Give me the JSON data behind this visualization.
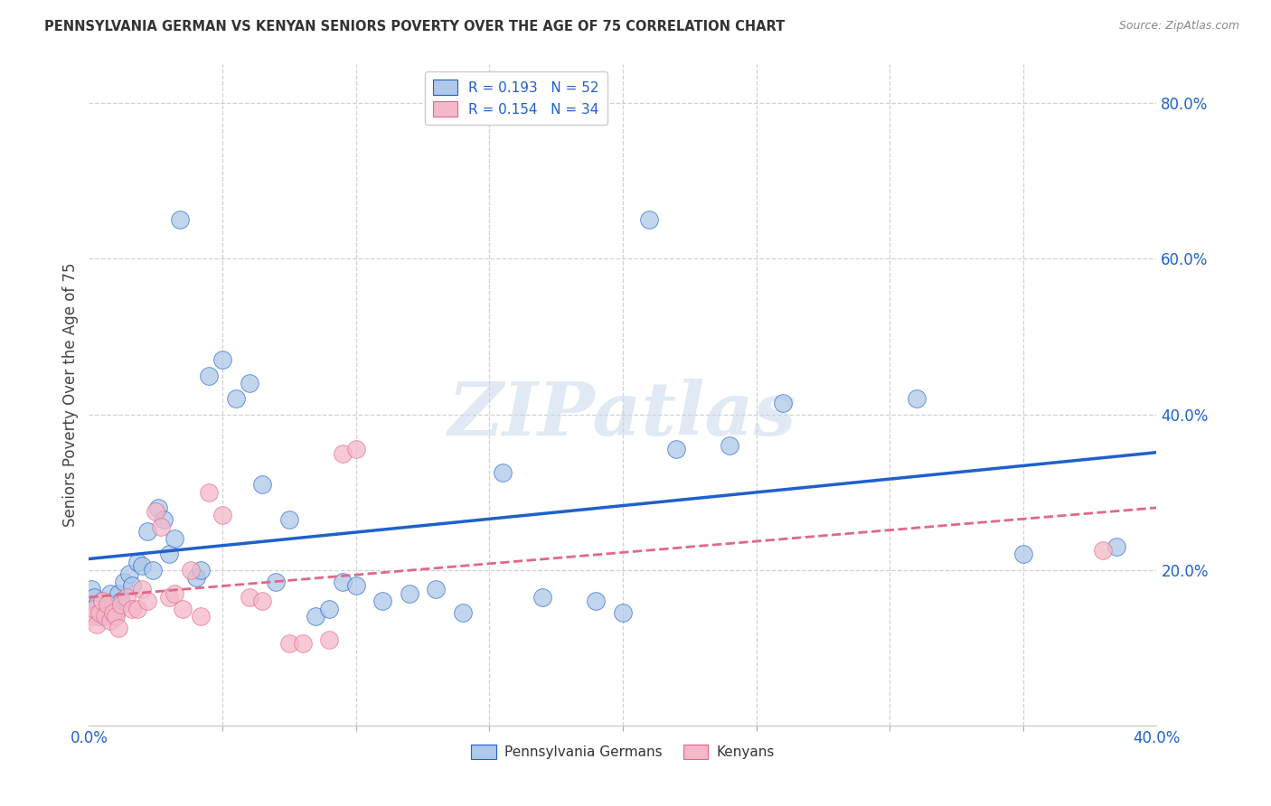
{
  "title": "PENNSYLVANIA GERMAN VS KENYAN SENIORS POVERTY OVER THE AGE OF 75 CORRELATION CHART",
  "source": "Source: ZipAtlas.com",
  "ylabel": "Seniors Poverty Over the Age of 75",
  "xlim": [
    0.0,
    0.4
  ],
  "ylim": [
    0.0,
    0.85
  ],
  "xticks_shown": [
    0.0,
    0.4
  ],
  "yticks": [
    0.2,
    0.4,
    0.6,
    0.8
  ],
  "pa_german_R": 0.193,
  "pa_german_N": 52,
  "kenyan_R": 0.154,
  "kenyan_N": 34,
  "pa_german_color": "#adc8e8",
  "kenyan_color": "#f5b8c8",
  "trend_pa_color": "#2060cc",
  "trend_kenyan_color": "#e06888",
  "pa_german_x": [
    0.001,
    0.002,
    0.003,
    0.004,
    0.005,
    0.006,
    0.007,
    0.008,
    0.009,
    0.01,
    0.011,
    0.012,
    0.013,
    0.015,
    0.016,
    0.018,
    0.02,
    0.022,
    0.024,
    0.026,
    0.028,
    0.03,
    0.032,
    0.034,
    0.04,
    0.042,
    0.045,
    0.05,
    0.055,
    0.06,
    0.065,
    0.07,
    0.075,
    0.085,
    0.09,
    0.095,
    0.1,
    0.11,
    0.12,
    0.13,
    0.14,
    0.155,
    0.17,
    0.19,
    0.2,
    0.21,
    0.22,
    0.24,
    0.26,
    0.31,
    0.35,
    0.385
  ],
  "pa_german_y": [
    0.175,
    0.165,
    0.155,
    0.14,
    0.16,
    0.145,
    0.15,
    0.17,
    0.155,
    0.145,
    0.17,
    0.16,
    0.185,
    0.195,
    0.18,
    0.21,
    0.205,
    0.25,
    0.2,
    0.28,
    0.265,
    0.22,
    0.24,
    0.65,
    0.19,
    0.2,
    0.45,
    0.47,
    0.42,
    0.44,
    0.31,
    0.185,
    0.265,
    0.14,
    0.15,
    0.185,
    0.18,
    0.16,
    0.17,
    0.175,
    0.145,
    0.325,
    0.165,
    0.16,
    0.145,
    0.65,
    0.355,
    0.36,
    0.415,
    0.42,
    0.22,
    0.23
  ],
  "kenyan_x": [
    0.001,
    0.002,
    0.003,
    0.004,
    0.005,
    0.006,
    0.007,
    0.008,
    0.009,
    0.01,
    0.011,
    0.012,
    0.014,
    0.016,
    0.018,
    0.02,
    0.022,
    0.025,
    0.027,
    0.03,
    0.032,
    0.035,
    0.038,
    0.042,
    0.045,
    0.05,
    0.06,
    0.065,
    0.075,
    0.08,
    0.09,
    0.095,
    0.1,
    0.38
  ],
  "kenyan_y": [
    0.14,
    0.15,
    0.13,
    0.145,
    0.16,
    0.14,
    0.155,
    0.135,
    0.145,
    0.14,
    0.125,
    0.155,
    0.165,
    0.15,
    0.15,
    0.175,
    0.16,
    0.275,
    0.255,
    0.165,
    0.17,
    0.15,
    0.2,
    0.14,
    0.3,
    0.27,
    0.165,
    0.16,
    0.105,
    0.105,
    0.11,
    0.35,
    0.355,
    0.225
  ],
  "watermark_text": "ZIPatlas",
  "background_color": "#ffffff",
  "grid_color": "#cccccc",
  "grid_inner_tick_color": "#aaaaaa"
}
